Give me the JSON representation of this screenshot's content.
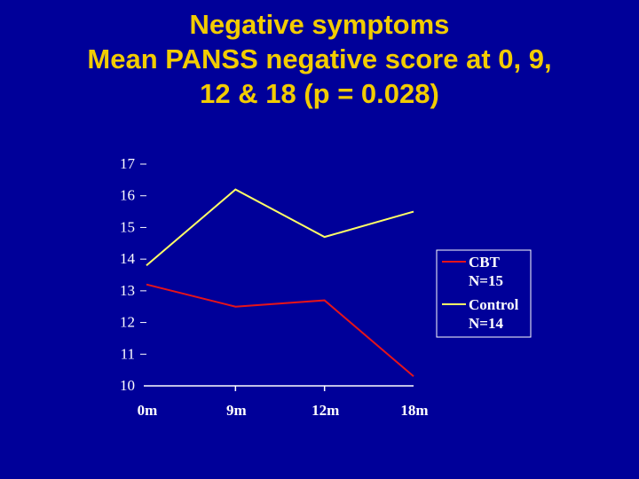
{
  "slide": {
    "title_lines": [
      "Negative symptoms",
      "Mean PANSS negative score at 0, 9,",
      "12 & 18 (p = 0.028)"
    ]
  },
  "chart_data": {
    "type": "line",
    "categories": [
      "0m",
      "9m",
      "12m",
      "18m"
    ],
    "ylim": [
      10,
      17
    ],
    "yticks": [
      "10",
      "11",
      "12",
      "13",
      "14",
      "15",
      "16",
      "17"
    ],
    "grid": false,
    "legend_position": "right",
    "series": [
      {
        "name": "CBT",
        "legend_lines": [
          "CBT",
          "N=15"
        ],
        "color": "#e5141a",
        "values": [
          13.2,
          12.5,
          12.7,
          10.3
        ]
      },
      {
        "name": "Control",
        "legend_lines": [
          "Control",
          "N=14"
        ],
        "color": "#ffff66",
        "values": [
          13.8,
          16.2,
          14.7,
          15.5
        ]
      }
    ]
  },
  "colors": {
    "background": "#000099",
    "title": "#f2cc00",
    "axis": "#ffffff"
  }
}
